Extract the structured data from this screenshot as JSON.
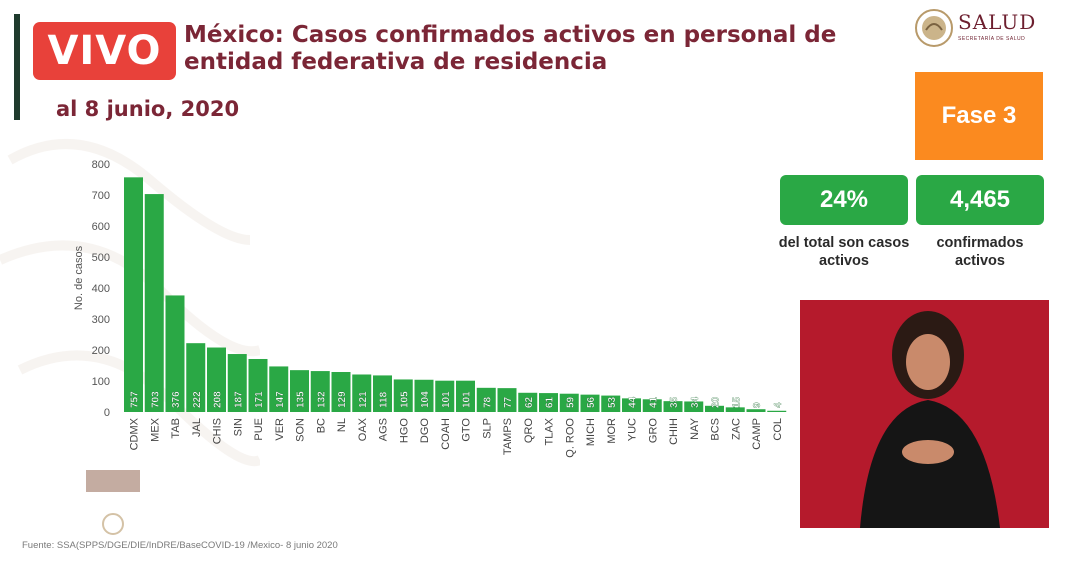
{
  "live_badge": "VIVO",
  "title": "México: Casos confirmados activos en personal de entidad federativa de residencia",
  "date": "al 8 junio, 2020",
  "logo": {
    "name": "SALUD",
    "subtitle": "SECRETARÍA DE SALUD"
  },
  "phase": "Fase 3",
  "stats": [
    {
      "value": "24%",
      "label": "del total son casos activos"
    },
    {
      "value": "4,465",
      "label": "confirmados activos"
    }
  ],
  "source": "Fuente: SSA(SPPS/DGE/DIE/InDRE/BaseCOVID-19 /Mexico- 8 junio 2020",
  "colors": {
    "bar": "#2aa845",
    "title": "#7b2636",
    "badge": "#e8413a",
    "phase": "#fb8a1f"
  },
  "chart_data": {
    "type": "bar",
    "ylabel": "No. de casos",
    "ylim": [
      0,
      800
    ],
    "yticks": [
      0,
      100,
      200,
      300,
      400,
      500,
      600,
      700,
      800
    ],
    "grid": false,
    "categories": [
      "CDMX",
      "MEX",
      "TAB",
      "JAL",
      "CHIS",
      "SIN",
      "PUE",
      "VER",
      "SON",
      "BC",
      "NL",
      "OAX",
      "AGS",
      "HGO",
      "DGO",
      "COAH",
      "GTO",
      "SLP",
      "TAMPS",
      "QRO",
      "TLAX",
      "Q. ROO",
      "MICH",
      "MOR",
      "YUC",
      "GRO",
      "CHIH",
      "NAY",
      "BCS",
      "ZAC",
      "CAMP",
      "COL"
    ],
    "values": [
      757,
      703,
      376,
      222,
      208,
      187,
      171,
      147,
      135,
      132,
      129,
      121,
      118,
      105,
      104,
      101,
      101,
      78,
      77,
      62,
      61,
      59,
      56,
      53,
      44,
      41,
      35,
      34,
      20,
      15,
      9,
      4
    ]
  }
}
